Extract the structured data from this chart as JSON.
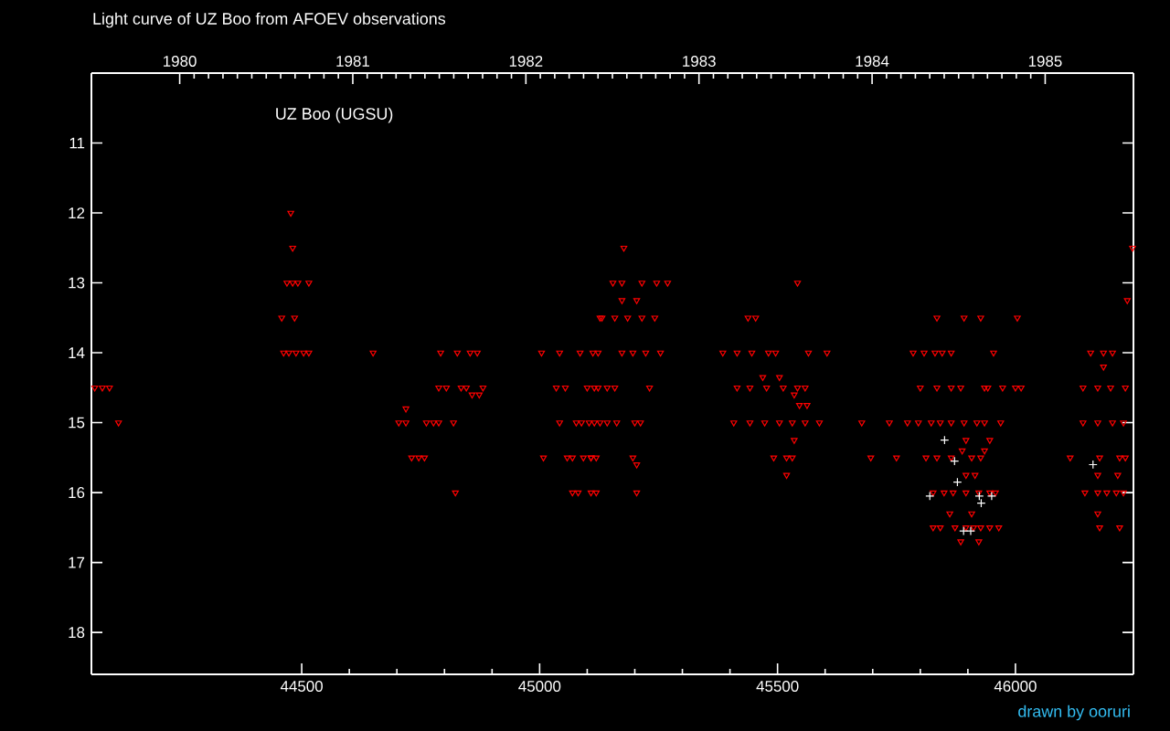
{
  "chart_data": {
    "type": "scatter",
    "title": "Light curve of UZ Boo from AFOEV observations",
    "annotations": [
      "UZ Boo (UGSU)",
      "drawn by ooruri"
    ],
    "xlim": [
      44058,
      46248
    ],
    "xticks": [
      44500,
      45000,
      45500,
      46000
    ],
    "x2lim": [
      1979.49,
      1985.51
    ],
    "x2ticks": [
      1980,
      1981,
      1982,
      1983,
      1984,
      1985
    ],
    "ylim": [
      18.6,
      10.0
    ],
    "yticks": [
      11,
      12,
      13,
      14,
      15,
      16,
      17,
      18
    ],
    "series": [
      {
        "color": "#ff0000",
        "marker": "triangle",
        "x": [
          44065,
          44081,
          44096,
          44115,
          44477,
          44481,
          44469,
          44481,
          44492,
          44515,
          44458,
          44485,
          44462,
          44473,
          44488,
          44504,
          44515,
          44650,
          44719,
          44704,
          44719,
          44762,
          44777,
          44788,
          44819,
          44731,
          44746,
          44758,
          44792,
          44827,
          44854,
          44869,
          44788,
          44804,
          44835,
          44846,
          44881,
          44858,
          44873,
          44823,
          45004,
          45042,
          45085,
          45112,
          45123,
          45035,
          45054,
          45100,
          45123,
          45042,
          45077,
          45088,
          45104,
          45115,
          45127,
          45008,
          45058,
          45069,
          45092,
          45108,
          45119,
          45069,
          45081,
          45108,
          45119,
          45131,
          45177,
          45154,
          45173,
          45215,
          45246,
          45269,
          45173,
          45204,
          45127,
          45158,
          45185,
          45215,
          45242,
          45173,
          45196,
          45223,
          45254,
          45115,
          45142,
          45158,
          45231,
          45142,
          45162,
          45200,
          45212,
          45108,
          45196,
          45204,
          45204,
          45542,
          45438,
          45454,
          45385,
          45415,
          45446,
          45481,
          45496,
          45565,
          45604,
          45469,
          45504,
          45535,
          45415,
          45442,
          45477,
          45512,
          45542,
          45558,
          45546,
          45562,
          45408,
          45442,
          45473,
          45504,
          45531,
          45558,
          45588,
          45535,
          45492,
          45519,
          45531,
          45519,
          45677,
          45835,
          45892,
          45927,
          46004,
          45785,
          45808,
          45831,
          45846,
          45865,
          45954,
          45800,
          45835,
          45865,
          45885,
          45935,
          45942,
          45973,
          46000,
          46012,
          45735,
          45773,
          45796,
          45823,
          45842,
          45865,
          45892,
          45919,
          45935,
          45969,
          45696,
          45750,
          45812,
          45835,
          45865,
          45908,
          45927,
          45827,
          45850,
          45869,
          45896,
          45923,
          45946,
          45958,
          45827,
          45842,
          45873,
          45896,
          45912,
          45927,
          45946,
          45965,
          45885,
          45923,
          45896,
          45946,
          45888,
          45935,
          45896,
          45915,
          45862,
          45908,
          46235,
          46246,
          46158,
          46185,
          46204,
          46185,
          46142,
          46173,
          46200,
          46231,
          46142,
          46173,
          46204,
          46227,
          46115,
          46177,
          46219,
          46231,
          46173,
          46215,
          46146,
          46173,
          46192,
          46212,
          46227,
          46173,
          46177,
          46219
        ],
        "values": [
          14.5,
          14.5,
          14.5,
          15,
          12,
          12.5,
          13,
          13,
          13,
          13,
          13.5,
          13.5,
          14,
          14,
          14,
          14,
          14,
          14,
          14.8,
          15,
          15,
          15,
          15,
          15,
          15,
          15.5,
          15.5,
          15.5,
          14,
          14,
          14,
          14,
          14.5,
          14.5,
          14.5,
          14.5,
          14.5,
          14.6,
          14.6,
          16,
          14,
          14,
          14,
          14,
          14,
          14.5,
          14.5,
          14.5,
          14.5,
          15,
          15,
          15,
          15,
          15,
          15,
          15.5,
          15.5,
          15.5,
          15.5,
          15.5,
          15.5,
          16,
          16,
          16,
          16,
          13.5,
          12.5,
          13,
          13,
          13,
          13,
          13,
          13.25,
          13.25,
          13.5,
          13.5,
          13.5,
          13.5,
          13.5,
          14,
          14,
          14,
          14,
          14.5,
          14.5,
          14.5,
          14.5,
          15,
          15,
          15,
          15,
          15.5,
          15.5,
          15.6,
          16,
          13,
          13.5,
          13.5,
          14,
          14,
          14,
          14,
          14,
          14,
          14,
          14.35,
          14.35,
          14.6,
          14.5,
          14.5,
          14.5,
          14.5,
          14.5,
          14.5,
          14.75,
          14.75,
          15,
          15,
          15,
          15,
          15,
          15,
          15,
          15.25,
          15.5,
          15.5,
          15.5,
          15.75,
          15,
          13.5,
          13.5,
          13.5,
          13.5,
          14,
          14,
          14,
          14,
          14,
          14,
          14.5,
          14.5,
          14.5,
          14.5,
          14.5,
          14.5,
          14.5,
          14.5,
          14.5,
          15,
          15,
          15,
          15,
          15,
          15,
          15,
          15,
          15,
          15,
          15.5,
          15.5,
          15.5,
          15.5,
          15.5,
          15.5,
          15.5,
          16,
          16,
          16,
          16,
          16,
          16,
          16,
          16.5,
          16.5,
          16.5,
          16.5,
          16.5,
          16.5,
          16.5,
          16.5,
          16.7,
          16.7,
          15.25,
          15.25,
          15.4,
          15.4,
          15.75,
          15.75,
          16.3,
          16.3,
          13.25,
          12.5,
          14,
          14,
          14,
          14.2,
          14.5,
          14.5,
          14.5,
          14.5,
          15,
          15,
          15,
          15,
          15.5,
          15.5,
          15.5,
          15.5,
          15.75,
          15.75,
          16,
          16,
          16,
          16,
          16,
          16.3,
          16.5,
          16.5
        ]
      },
      {
        "color": "#ffffff",
        "marker": "cross",
        "x": [
          45851,
          45878,
          45872,
          45924,
          45950,
          45928,
          45820,
          45891,
          45906,
          46163
        ],
        "values": [
          15.25,
          15.85,
          15.55,
          16.05,
          16.05,
          16.15,
          16.05,
          16.55,
          16.55,
          15.6
        ]
      }
    ]
  }
}
